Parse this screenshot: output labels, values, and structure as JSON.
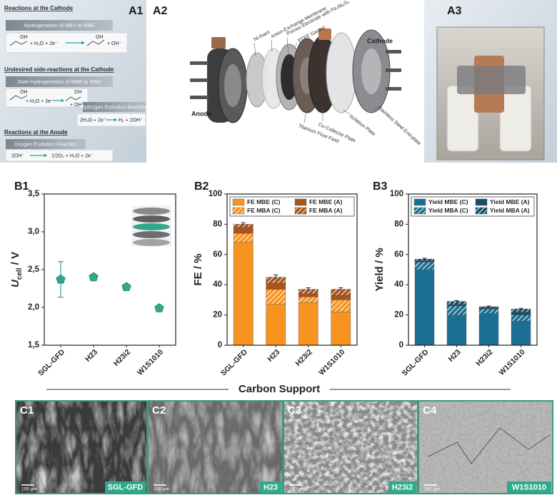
{
  "panel_labels": [
    "A1",
    "A2",
    "A3",
    "B1",
    "B2",
    "B3",
    "C1",
    "C2",
    "C3",
    "C4"
  ],
  "scheme": {
    "cathode_heading": "Reactions at the Cathode",
    "hydrogenation": {
      "title": "Hydrogenation of MBY to MBE",
      "reactants": "+ H₂O + 2e⁻",
      "products": "+ OH⁻"
    },
    "side_heading": "Undesired side-reactions at the Cathode",
    "over_hydrogenation": {
      "title": "Over-hydrogenation of MBE to MBA",
      "reactants": "+ H₂O + 2e⁻",
      "products": "+ OH⁻"
    },
    "her": {
      "title": "Hydrogen Evolution Reaction",
      "reactants": "2H₂O + 2e⁻",
      "products": "H₂ + 2OH⁻"
    },
    "anode_heading": "Reactions at the Anode",
    "oer": {
      "title": "Oxygen Evolution Reaction",
      "reactants": "2OH⁻",
      "products": "1/2O₂ + H₂O + 2e⁻"
    },
    "molecule_label": "OH"
  },
  "cell": {
    "anode": "Anode",
    "cathode": "Cathode",
    "top_components": [
      "Ni-foam",
      "Anion-Exchange Membrane",
      "Porous Electrode with Fe₃Ni₆S₈",
      "PTFE Gasket"
    ],
    "bottom_components": [
      "Titanium Flow Field",
      "Cu-Collector Plate",
      "Isolation Plate",
      "Stainless Steel End-plate"
    ]
  },
  "shared_x_label": "Carbon Support",
  "micrographs": [
    {
      "name": "SGL-GFD",
      "scale": "100 µm"
    },
    {
      "name": "H23",
      "scale": "100 µm"
    },
    {
      "name": "H23i2",
      "scale": "100 µm"
    },
    {
      "name": "W1S1010",
      "scale": "100 µm"
    }
  ],
  "chart_data": [
    {
      "type": "scatter",
      "y_label": [
        "U",
        "cell",
        " / V"
      ],
      "categories": [
        "SGL-GFD",
        "H23",
        "H23i2",
        "W1S1010"
      ],
      "values": [
        2.37,
        2.4,
        2.27,
        1.99
      ],
      "errors": [
        0.235,
        0.02,
        0.02,
        0.02
      ],
      "color": "#2fa98c",
      "ylim": [
        1.5,
        3.5
      ],
      "yticks": [
        {
          "value": 1.5,
          "label": "1,5"
        },
        {
          "value": 2.0,
          "label": "2,0"
        },
        {
          "value": 2.5,
          "label": "2,5"
        },
        {
          "value": 3.0,
          "label": "3,0"
        },
        {
          "value": 3.5,
          "label": "3,5"
        }
      ]
    },
    {
      "type": "bar",
      "stacked": true,
      "y_label": "FE / %",
      "categories": [
        "SGL-GFD",
        "H23",
        "H23i2",
        "W1S1010"
      ],
      "series": [
        {
          "name": "FE MBE (C)",
          "color": "#f7931e",
          "hatch": false,
          "values": [
            68,
            27,
            28,
            22
          ]
        },
        {
          "name": "FE MBA (C)",
          "color": "#f7931e",
          "hatch": true,
          "values": [
            6,
            10,
            4,
            8
          ]
        },
        {
          "name": "FE MBE (A)",
          "color": "#a9541b",
          "hatch": false,
          "values": [
            4,
            4,
            2,
            3
          ]
        },
        {
          "name": "FE MBA (A)",
          "color": "#a9541b",
          "hatch": true,
          "values": [
            2,
            4,
            3,
            4
          ]
        }
      ],
      "errors": [
        1,
        1.5,
        1,
        1
      ],
      "ylim": [
        0,
        100
      ],
      "yticks": [
        0,
        20,
        40,
        60,
        80,
        100
      ],
      "legend": "top"
    },
    {
      "type": "bar",
      "stacked": true,
      "y_label": "Yield / %",
      "categories": [
        "SGL-GFD",
        "H23",
        "H23i2",
        "W1S1010"
      ],
      "series": [
        {
          "name": "Yield MBE (C)",
          "color": "#1b6f92",
          "hatch": false,
          "values": [
            50,
            20,
            21,
            16
          ]
        },
        {
          "name": "Yield MBA (C)",
          "color": "#1b6f92",
          "hatch": true,
          "values": [
            5,
            6,
            3,
            4
          ]
        },
        {
          "name": "Yield MBE (A)",
          "color": "#174e68",
          "hatch": false,
          "values": [
            1,
            1,
            1,
            2
          ]
        },
        {
          "name": "Yield MBA (A)",
          "color": "#174e68",
          "hatch": true,
          "values": [
            1,
            2,
            0.5,
            2
          ]
        }
      ],
      "errors": [
        0.5,
        0.5,
        0.4,
        0.4
      ],
      "ylim": [
        0,
        100
      ],
      "yticks": [
        0,
        20,
        40,
        60,
        80,
        100
      ],
      "legend": "top"
    }
  ]
}
